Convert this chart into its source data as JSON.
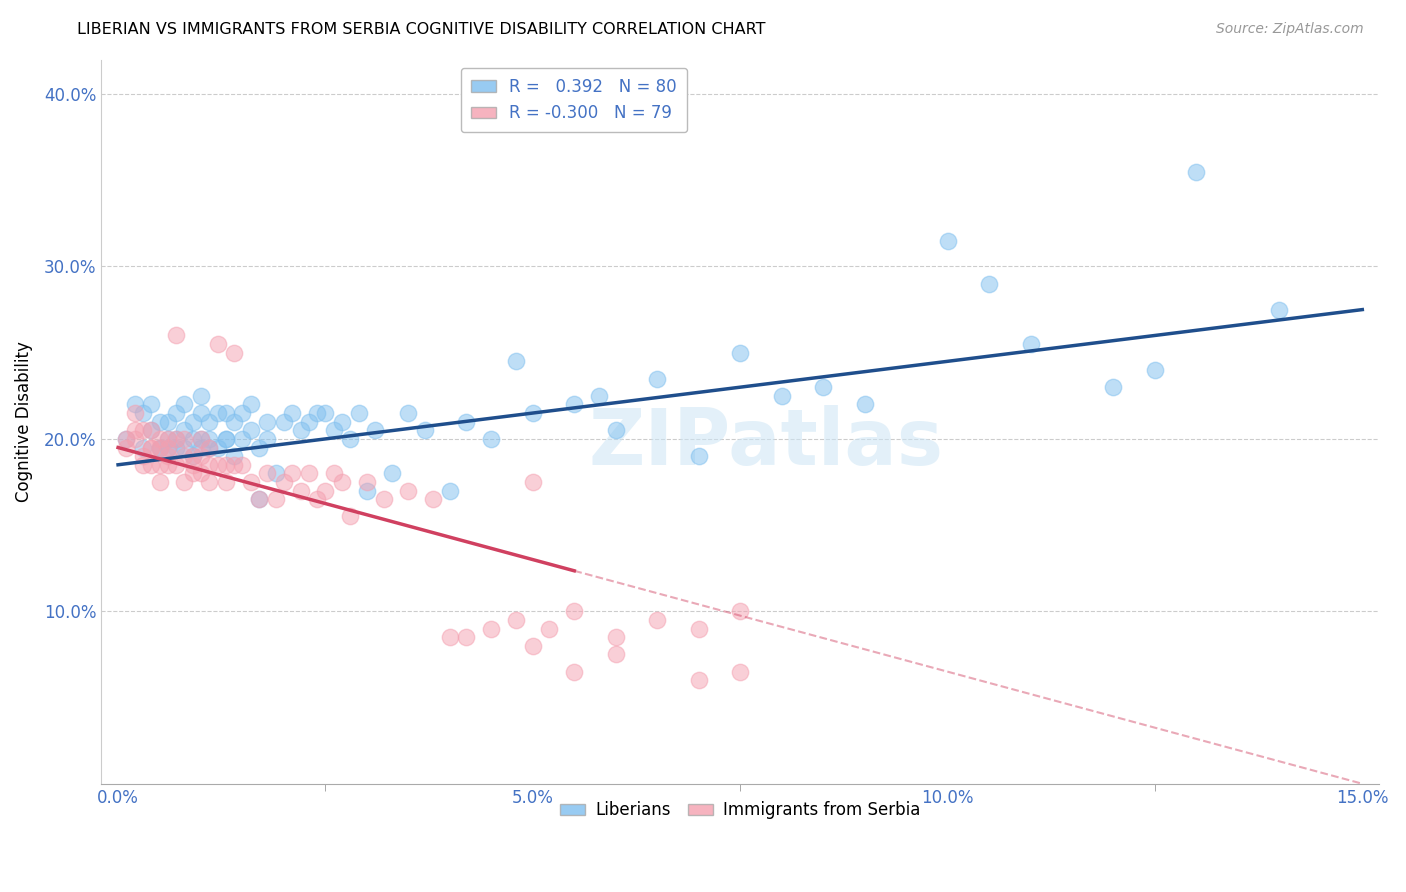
{
  "title": "LIBERIAN VS IMMIGRANTS FROM SERBIA COGNITIVE DISABILITY CORRELATION CHART",
  "source": "Source: ZipAtlas.com",
  "tick_color": "#4472c4",
  "ylabel": "Cognitive Disability",
  "xlim": [
    -0.002,
    0.152
  ],
  "ylim": [
    0.0,
    0.42
  ],
  "xticks": [
    0.0,
    0.05,
    0.1,
    0.15
  ],
  "xticklabels": [
    "0.0%",
    "5.0%",
    "10.0%",
    "15.0%"
  ],
  "yticks": [
    0.1,
    0.2,
    0.3,
    0.4
  ],
  "yticklabels": [
    "10.0%",
    "20.0%",
    "30.0%",
    "40.0%"
  ],
  "color_blue": "#7fbfef",
  "color_pink": "#f4a0b0",
  "line_blue": "#1f4e8c",
  "line_pink": "#d04060",
  "watermark": "ZIPatlas",
  "blue_intercept": 0.185,
  "blue_slope": 0.6,
  "pink_intercept": 0.195,
  "pink_slope": -1.3,
  "blue_x": [
    0.001,
    0.002,
    0.003,
    0.003,
    0.004,
    0.004,
    0.005,
    0.005,
    0.005,
    0.006,
    0.006,
    0.006,
    0.007,
    0.007,
    0.007,
    0.008,
    0.008,
    0.008,
    0.009,
    0.009,
    0.009,
    0.01,
    0.01,
    0.01,
    0.01,
    0.011,
    0.011,
    0.011,
    0.012,
    0.012,
    0.013,
    0.013,
    0.013,
    0.014,
    0.014,
    0.015,
    0.015,
    0.016,
    0.016,
    0.017,
    0.017,
    0.018,
    0.018,
    0.019,
    0.02,
    0.021,
    0.022,
    0.023,
    0.024,
    0.025,
    0.026,
    0.027,
    0.028,
    0.029,
    0.03,
    0.031,
    0.033,
    0.035,
    0.037,
    0.04,
    0.042,
    0.045,
    0.048,
    0.05,
    0.055,
    0.058,
    0.06,
    0.065,
    0.07,
    0.075,
    0.08,
    0.085,
    0.09,
    0.1,
    0.105,
    0.11,
    0.12,
    0.125,
    0.13,
    0.14
  ],
  "blue_y": [
    0.2,
    0.22,
    0.195,
    0.215,
    0.205,
    0.22,
    0.195,
    0.21,
    0.195,
    0.2,
    0.21,
    0.195,
    0.2,
    0.215,
    0.195,
    0.205,
    0.22,
    0.195,
    0.2,
    0.21,
    0.19,
    0.195,
    0.215,
    0.2,
    0.225,
    0.2,
    0.195,
    0.21,
    0.195,
    0.215,
    0.2,
    0.215,
    0.2,
    0.21,
    0.19,
    0.2,
    0.215,
    0.205,
    0.22,
    0.195,
    0.165,
    0.21,
    0.2,
    0.18,
    0.21,
    0.215,
    0.205,
    0.21,
    0.215,
    0.215,
    0.205,
    0.21,
    0.2,
    0.215,
    0.17,
    0.205,
    0.18,
    0.215,
    0.205,
    0.17,
    0.21,
    0.2,
    0.245,
    0.215,
    0.22,
    0.225,
    0.205,
    0.235,
    0.19,
    0.25,
    0.225,
    0.23,
    0.22,
    0.315,
    0.29,
    0.255,
    0.23,
    0.24,
    0.355,
    0.275
  ],
  "pink_x": [
    0.001,
    0.001,
    0.002,
    0.002,
    0.002,
    0.003,
    0.003,
    0.003,
    0.004,
    0.004,
    0.004,
    0.004,
    0.005,
    0.005,
    0.005,
    0.005,
    0.006,
    0.006,
    0.006,
    0.006,
    0.007,
    0.007,
    0.007,
    0.008,
    0.008,
    0.008,
    0.009,
    0.009,
    0.009,
    0.01,
    0.01,
    0.01,
    0.011,
    0.011,
    0.011,
    0.012,
    0.012,
    0.013,
    0.013,
    0.014,
    0.014,
    0.015,
    0.016,
    0.017,
    0.018,
    0.019,
    0.02,
    0.021,
    0.022,
    0.023,
    0.024,
    0.025,
    0.026,
    0.027,
    0.028,
    0.03,
    0.032,
    0.035,
    0.038,
    0.04,
    0.042,
    0.045,
    0.048,
    0.05,
    0.052,
    0.055,
    0.06,
    0.065,
    0.07,
    0.075,
    0.05,
    0.055,
    0.06,
    0.07,
    0.075
  ],
  "pink_y": [
    0.2,
    0.195,
    0.215,
    0.2,
    0.205,
    0.19,
    0.205,
    0.185,
    0.195,
    0.205,
    0.195,
    0.185,
    0.2,
    0.185,
    0.195,
    0.175,
    0.19,
    0.2,
    0.185,
    0.195,
    0.26,
    0.2,
    0.185,
    0.19,
    0.2,
    0.175,
    0.185,
    0.18,
    0.19,
    0.18,
    0.19,
    0.2,
    0.175,
    0.185,
    0.195,
    0.185,
    0.255,
    0.175,
    0.185,
    0.25,
    0.185,
    0.185,
    0.175,
    0.165,
    0.18,
    0.165,
    0.175,
    0.18,
    0.17,
    0.18,
    0.165,
    0.17,
    0.18,
    0.175,
    0.155,
    0.175,
    0.165,
    0.17,
    0.165,
    0.085,
    0.085,
    0.09,
    0.095,
    0.175,
    0.09,
    0.1,
    0.085,
    0.095,
    0.09,
    0.1,
    0.08,
    0.065,
    0.075,
    0.06,
    0.065
  ]
}
